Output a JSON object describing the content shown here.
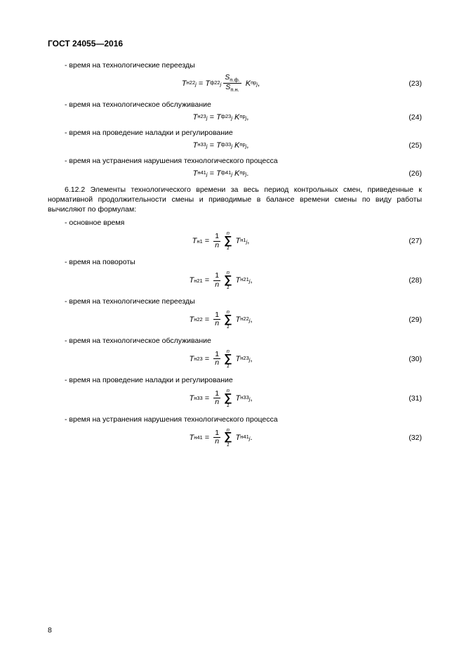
{
  "header": "ГОСТ 24055—2016",
  "bullets": {
    "b23": "-  время на технологические переезды",
    "b24": "-  время на технологическое обслуживание",
    "b25": "-  время на проведение наладки и регулирование",
    "b26": "-  время на устранения нарушения технологического процесса",
    "para": "6.12.2 Элементы технологического времени за весь период контрольных смен, приведенные к нормативной продолжительности смены и приводимые в балансе времени смены по виду работы вычисляют по формулам:",
    "b27": "-  основное время",
    "b28": "-  время на повороты",
    "b29": "-  время на технологические переезды",
    "b30": "-  время на технологическое обслуживание",
    "b31": "-  время на проведение наладки и регулирование",
    "b32": "-  время на устранения нарушения технологического процесса"
  },
  "equations": {
    "e23": {
      "left_sub": "н22",
      "right_sub": "ф22",
      "frac_top": "S",
      "frac_top_sub": "п.ф.",
      "frac_bot": "S",
      "frac_bot_sub": "п.н.",
      "k_sub": "пр",
      "tail": ",",
      "num": "(23)"
    },
    "e24": {
      "left_sub": "н23",
      "right_sub": "ф23",
      "k_sub": "пр",
      "tail": ",",
      "num": "(24)"
    },
    "e25": {
      "left_sub": "н33",
      "right_sub": "ф33",
      "k_sub": "пр",
      "tail": ",",
      "num": "(25)"
    },
    "e26": {
      "left_sub": "н41",
      "right_sub": "ф41",
      "k_sub": "пр",
      "tail": ".",
      "num": "(26)"
    },
    "e27": {
      "left_sub": "н1",
      "sum_sub": "н1",
      "tail": ",",
      "num": "(27)"
    },
    "e28": {
      "left_sub": "н21",
      "sum_sub": "н21",
      "tail": ",",
      "num": "(28)"
    },
    "e29": {
      "left_sub": "н22",
      "sum_sub": "н22",
      "tail": ",",
      "num": "(29)"
    },
    "e30": {
      "left_sub": "н23",
      "sum_sub": "н23",
      "tail": ",",
      "num": "(30)"
    },
    "e31": {
      "left_sub": "н33",
      "sum_sub": "н33",
      "tail": ",",
      "num": "(31)"
    },
    "e32": {
      "left_sub": "н41",
      "sum_sub": "н41",
      "tail": ".",
      "num": "(32)"
    }
  },
  "pagenum": "8"
}
